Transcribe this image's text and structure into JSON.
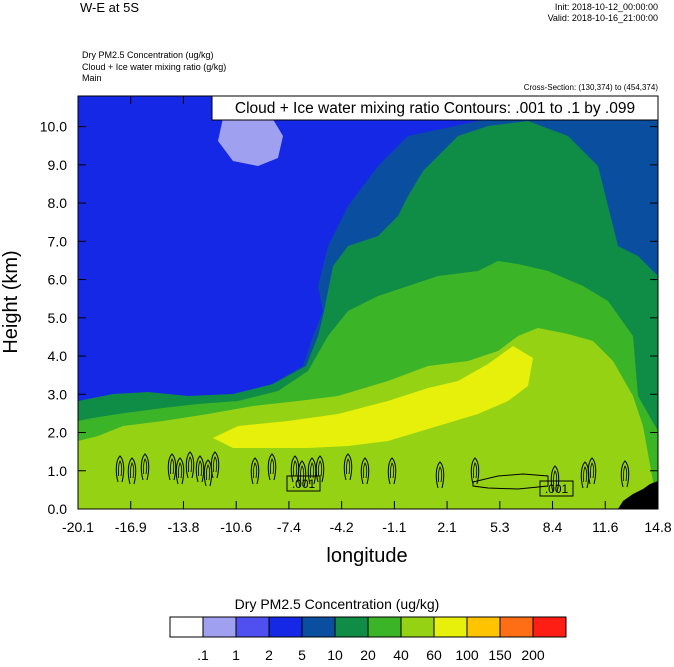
{
  "header": {
    "title": "W-E at 5S",
    "init": "Init: 2018-10-12_00:00:00",
    "valid": "Valid: 2018-10-16_21:00:00",
    "var_lines": [
      "Dry PM2.5 Concentration   (ug/kg)",
      "Cloud + Ice water mixing ratio   (g/kg)",
      "Main"
    ],
    "cross_section": "Cross-Section: (130,374) to (454,374)"
  },
  "chart_data": {
    "type": "heatmap",
    "title": "Dry PM2.5 Concentration (ug/kg) with Cloud + Ice water mixing ratio contours",
    "contour_label": "Cloud + Ice water mixing ratio Contours: .001 to .1 by .099",
    "contour_value_labels": [
      ".001",
      ".001"
    ],
    "xlabel": "longitude",
    "ylabel": "Height (km)",
    "xlim": [
      -20.1,
      14.8
    ],
    "ylim": [
      0.0,
      10.8
    ],
    "xticks": [
      "-20.1",
      "-16.9",
      "-13.8",
      "-10.6",
      "-7.4",
      "-4.2",
      "-1.1",
      "2.1",
      "5.3",
      "8.4",
      "11.6",
      "14.8"
    ],
    "yticks": [
      "0.0",
      "1.0",
      "2.0",
      "3.0",
      "4.0",
      "5.0",
      "6.0",
      "7.0",
      "8.0",
      "9.0",
      "10.0"
    ],
    "colorbar": {
      "title": "Dry PM2.5 Concentration  (ug/kg)",
      "colors": [
        "#ffffff",
        "#a0a0f0",
        "#5050f0",
        "#1428e6",
        "#0a4ea0",
        "#0f8c46",
        "#3cb428",
        "#96d214",
        "#e6f00a",
        "#ffc300",
        "#ff6e14",
        "#ff1e14"
      ],
      "labels": [
        ".1",
        "1",
        "2",
        "5",
        "10",
        "20",
        "40",
        "60",
        "100",
        "150",
        "200"
      ]
    },
    "grid": false
  }
}
